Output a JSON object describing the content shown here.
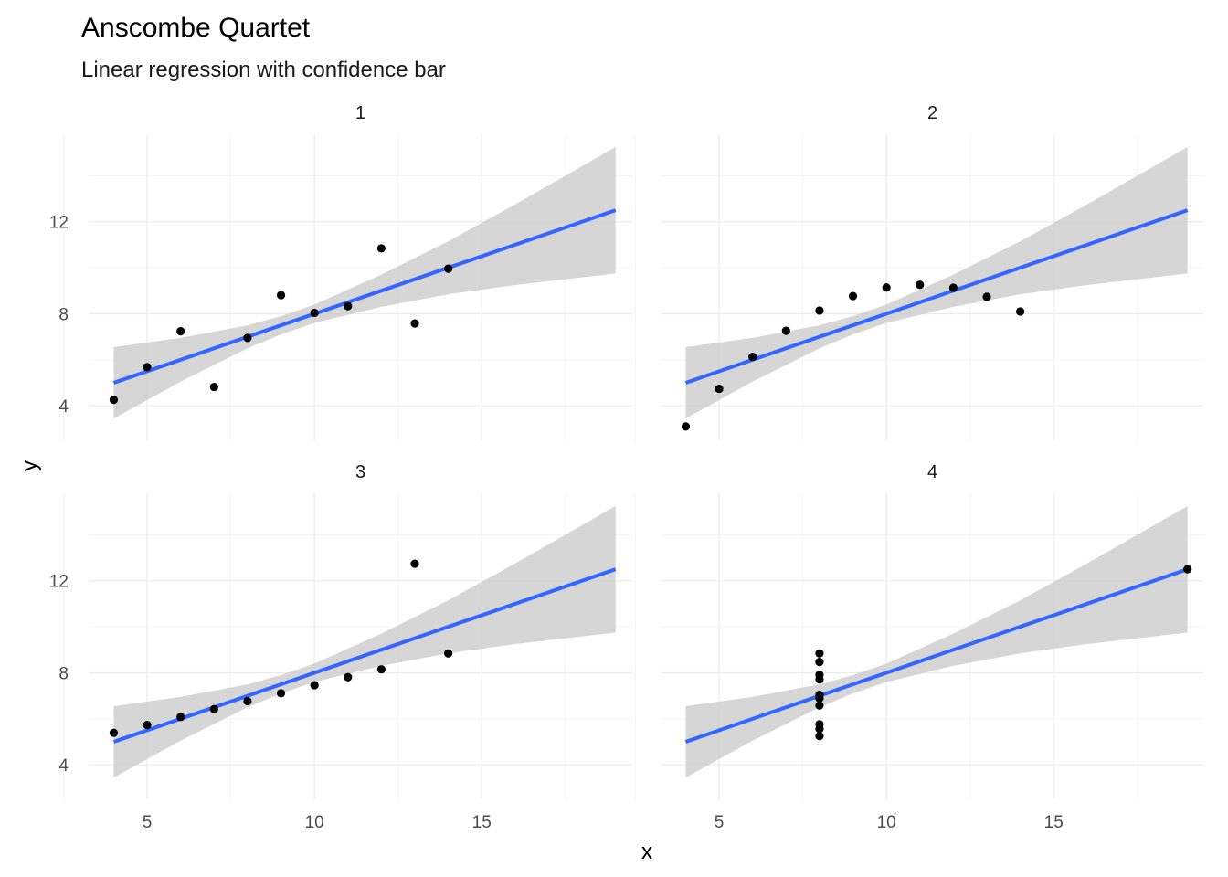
{
  "chart_data": {
    "type": "scatter",
    "title": "Anscombe Quartet",
    "subtitle": "Linear regression with confidence bar",
    "xlabel": "x",
    "ylabel": "y",
    "xlim": [
      3.25,
      19.5
    ],
    "ylim": [
      2.5,
      15.8
    ],
    "x_ticks": [
      5,
      10,
      15
    ],
    "x_tick_labels": [
      "5",
      "10",
      "15"
    ],
    "y_ticks": [
      4,
      8,
      12
    ],
    "y_tick_labels": [
      "4",
      "8",
      "12"
    ],
    "grid": true,
    "fit_line_color": "#3366FF",
    "band_color": "#CCCCCC",
    "point_color": "#000000",
    "facets": [
      {
        "label": "1",
        "x": [
          10,
          8,
          13,
          9,
          11,
          14,
          6,
          4,
          12,
          7,
          5
        ],
        "y": [
          8.04,
          6.95,
          7.58,
          8.81,
          8.33,
          9.96,
          7.24,
          4.26,
          10.84,
          4.82,
          5.68
        ],
        "fit": {
          "intercept": 3.0,
          "slope": 0.5,
          "x_range": [
            4,
            19
          ]
        },
        "band_lower": [
          [
            4,
            3.45
          ],
          [
            6,
            5.05
          ],
          [
            8,
            6.5
          ],
          [
            9,
            7.1
          ],
          [
            10,
            7.6
          ],
          [
            12,
            8.3
          ],
          [
            14,
            8.85
          ],
          [
            16,
            9.25
          ],
          [
            19,
            9.75
          ]
        ],
        "band_upper": [
          [
            4,
            6.55
          ],
          [
            6,
            6.95
          ],
          [
            8,
            7.5
          ],
          [
            9,
            7.9
          ],
          [
            10,
            8.4
          ],
          [
            12,
            9.7
          ],
          [
            14,
            11.15
          ],
          [
            16,
            12.75
          ],
          [
            19,
            15.25
          ]
        ]
      },
      {
        "label": "2",
        "x": [
          10,
          8,
          13,
          9,
          11,
          14,
          6,
          4,
          12,
          7,
          5
        ],
        "y": [
          9.14,
          8.14,
          8.74,
          8.77,
          9.26,
          8.1,
          6.13,
          3.1,
          9.13,
          7.26,
          4.74
        ],
        "fit": {
          "intercept": 3.0,
          "slope": 0.5,
          "x_range": [
            4,
            19
          ]
        },
        "band_lower": [
          [
            4,
            3.45
          ],
          [
            6,
            5.05
          ],
          [
            8,
            6.5
          ],
          [
            9,
            7.1
          ],
          [
            10,
            7.6
          ],
          [
            12,
            8.3
          ],
          [
            14,
            8.85
          ],
          [
            16,
            9.25
          ],
          [
            19,
            9.75
          ]
        ],
        "band_upper": [
          [
            4,
            6.55
          ],
          [
            6,
            6.95
          ],
          [
            8,
            7.5
          ],
          [
            9,
            7.9
          ],
          [
            10,
            8.4
          ],
          [
            12,
            9.7
          ],
          [
            14,
            11.15
          ],
          [
            16,
            12.75
          ],
          [
            19,
            15.25
          ]
        ]
      },
      {
        "label": "3",
        "x": [
          10,
          8,
          13,
          9,
          11,
          14,
          6,
          4,
          12,
          7,
          5
        ],
        "y": [
          7.46,
          6.77,
          12.74,
          7.11,
          7.81,
          8.84,
          6.08,
          5.39,
          8.15,
          6.42,
          5.73
        ],
        "fit": {
          "intercept": 3.0,
          "slope": 0.5,
          "x_range": [
            4,
            19
          ]
        },
        "band_lower": [
          [
            4,
            3.45
          ],
          [
            6,
            5.05
          ],
          [
            8,
            6.5
          ],
          [
            9,
            7.1
          ],
          [
            10,
            7.6
          ],
          [
            12,
            8.3
          ],
          [
            14,
            8.85
          ],
          [
            16,
            9.25
          ],
          [
            19,
            9.75
          ]
        ],
        "band_upper": [
          [
            4,
            6.55
          ],
          [
            6,
            6.95
          ],
          [
            8,
            7.5
          ],
          [
            9,
            7.9
          ],
          [
            10,
            8.4
          ],
          [
            12,
            9.7
          ],
          [
            14,
            11.15
          ],
          [
            16,
            12.75
          ],
          [
            19,
            15.25
          ]
        ]
      },
      {
        "label": "4",
        "x": [
          8,
          8,
          8,
          8,
          8,
          8,
          8,
          19,
          8,
          8,
          8
        ],
        "y": [
          6.58,
          5.76,
          7.71,
          8.84,
          8.47,
          7.04,
          5.25,
          12.5,
          5.56,
          7.91,
          6.89
        ],
        "fit": {
          "intercept": 3.0,
          "slope": 0.5,
          "x_range": [
            4,
            19
          ]
        },
        "band_lower": [
          [
            4,
            3.45
          ],
          [
            6,
            5.05
          ],
          [
            8,
            6.5
          ],
          [
            9,
            7.1
          ],
          [
            10,
            7.6
          ],
          [
            12,
            8.3
          ],
          [
            14,
            8.85
          ],
          [
            16,
            9.25
          ],
          [
            19,
            9.75
          ]
        ],
        "band_upper": [
          [
            4,
            6.55
          ],
          [
            6,
            6.95
          ],
          [
            8,
            7.5
          ],
          [
            9,
            7.9
          ],
          [
            10,
            8.4
          ],
          [
            12,
            9.7
          ],
          [
            14,
            11.15
          ],
          [
            16,
            12.75
          ],
          [
            19,
            15.25
          ]
        ]
      }
    ]
  }
}
